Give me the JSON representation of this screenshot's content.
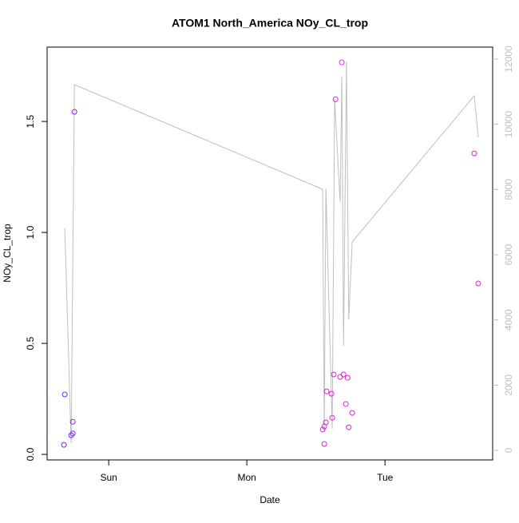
{
  "chart_data": {
    "type": "scatter",
    "title": "ATOM1 North_America NOy_CL_trop",
    "x_label": "Date",
    "y_label": "NOy_CL_trop",
    "xlim": [
      -10.7,
      66.7
    ],
    "xticks": [
      {
        "value": 0,
        "label": "Sun"
      },
      {
        "value": 24,
        "label": "Mon"
      },
      {
        "value": 48,
        "label": "Tue"
      }
    ],
    "ylim": [
      -0.025,
      1.835
    ],
    "yticks": [
      {
        "value": 0,
        "label": "0.0"
      },
      0.5,
      {
        "value": 1,
        "label": "1.0"
      },
      1.5
    ],
    "y2lim": [
      -294,
      12367
    ],
    "y2ticks": [
      0,
      2000,
      4000,
      6000,
      8000,
      10000,
      12000
    ],
    "series": [
      {
        "type": "scatter",
        "color": "#7f22f5",
        "x": [
          -7.77,
          -7.63,
          -6.52,
          -6.24,
          -6.24,
          -5.96
        ],
        "values": [
          0.043,
          0.27,
          0.086,
          0.147,
          0.094,
          1.543
        ]
      },
      {
        "type": "scatter",
        "color": "#dd22dd",
        "x": [
          37.17,
          37.45,
          37.45,
          37.73,
          37.86,
          38.7,
          38.83,
          39.1,
          39.4,
          40.2,
          40.5,
          40.8,
          41.2,
          41.5,
          41.7,
          42.3,
          63.5,
          64.2
        ],
        "values": [
          0.112,
          0.126,
          0.047,
          0.144,
          0.284,
          0.273,
          0.165,
          0.36,
          1.6,
          0.349,
          1.766,
          0.36,
          0.227,
          0.345,
          0.122,
          0.187,
          1.356,
          0.77
        ]
      },
      {
        "type": "line",
        "axis": "y2",
        "color": "#bebebe",
        "x": [
          -7.63,
          -6.52,
          -5.96,
          37.17,
          37.45,
          37.73,
          38.83,
          39.25,
          40.2,
          40.5,
          40.8,
          41.3,
          41.7,
          42.3,
          63.5,
          64.2
        ],
        "values": [
          6808,
          220,
          11216,
          8008,
          588,
          8033,
          661,
          10776,
          7616,
          11461,
          3208,
          11926,
          4016,
          6392,
          10873,
          9600
        ]
      }
    ]
  }
}
